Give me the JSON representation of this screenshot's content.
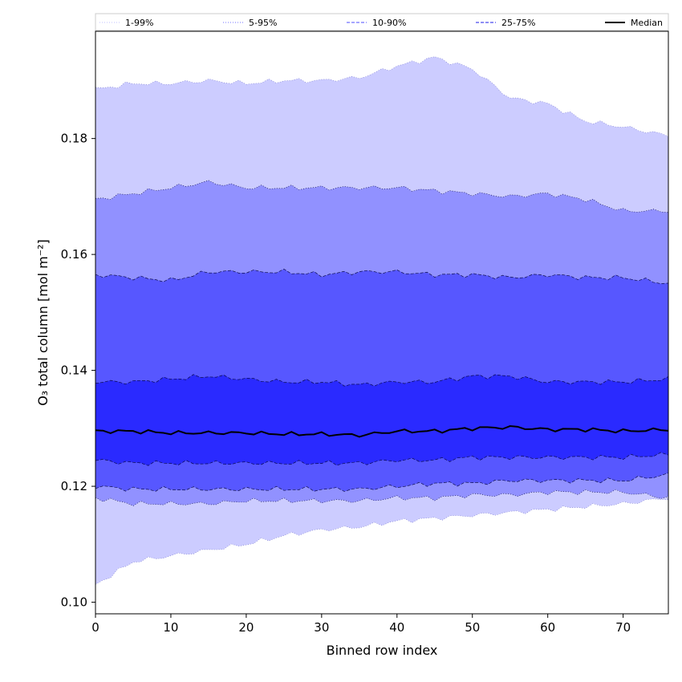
{
  "chart_data": {
    "type": "area",
    "title": "",
    "xlabel": "Binned row index",
    "ylabel": "O₃ total column [mol m⁻²]",
    "xlim": [
      0,
      76
    ],
    "ylim": [
      0.098,
      0.1985
    ],
    "xticks": [
      0,
      10,
      20,
      30,
      40,
      50,
      60,
      70
    ],
    "yticks": [
      0.1,
      0.12,
      0.14,
      0.16,
      0.18
    ],
    "ytick_labels": [
      "0.10",
      "0.12",
      "0.14",
      "0.16",
      "0.18"
    ],
    "grid": false,
    "legend_position": "top",
    "band_colors": [
      "#ccccff",
      "#9191ff",
      "#5757ff",
      "#2a2aff"
    ],
    "median_color": "#000000",
    "x_knots": [
      0,
      5,
      10,
      15,
      20,
      25,
      30,
      35,
      40,
      45,
      50,
      55,
      60,
      65,
      70,
      76
    ],
    "series": [
      {
        "name": "1-99%",
        "lower": [
          0.103,
          0.107,
          0.108,
          0.109,
          0.11,
          0.1115,
          0.1125,
          0.113,
          0.114,
          0.1145,
          0.115,
          0.1155,
          0.116,
          0.1165,
          0.117,
          0.118
        ],
        "upper": [
          0.1885,
          0.1895,
          0.1895,
          0.19,
          0.1895,
          0.19,
          0.19,
          0.1905,
          0.1925,
          0.194,
          0.192,
          0.187,
          0.186,
          0.183,
          0.182,
          0.1805
        ]
      },
      {
        "name": "5-95%",
        "lower": [
          0.118,
          0.117,
          0.117,
          0.117,
          0.1175,
          0.1175,
          0.1175,
          0.1175,
          0.118,
          0.118,
          0.1185,
          0.1185,
          0.119,
          0.119,
          0.119,
          0.118
        ],
        "upper": [
          0.1695,
          0.1705,
          0.1715,
          0.1725,
          0.1715,
          0.1715,
          0.1715,
          0.1715,
          0.1715,
          0.171,
          0.1705,
          0.17,
          0.1705,
          0.1695,
          0.1675,
          0.1675
        ]
      },
      {
        "name": "10-90%",
        "lower": [
          0.12,
          0.1195,
          0.1195,
          0.1195,
          0.1195,
          0.1195,
          0.1195,
          0.1195,
          0.12,
          0.1205,
          0.1205,
          0.121,
          0.121,
          0.121,
          0.121,
          0.122
        ],
        "upper": [
          0.1565,
          0.156,
          0.1555,
          0.157,
          0.157,
          0.157,
          0.1565,
          0.157,
          0.157,
          0.1565,
          0.1565,
          0.156,
          0.1565,
          0.156,
          0.156,
          0.155
        ]
      },
      {
        "name": "25-75%",
        "lower": [
          0.1245,
          0.124,
          0.124,
          0.124,
          0.124,
          0.124,
          0.124,
          0.124,
          0.1245,
          0.1245,
          0.125,
          0.125,
          0.125,
          0.125,
          0.125,
          0.1255
        ],
        "upper": [
          0.138,
          0.138,
          0.1385,
          0.139,
          0.1385,
          0.138,
          0.138,
          0.1375,
          0.138,
          0.138,
          0.139,
          0.139,
          0.138,
          0.138,
          0.138,
          0.1385
        ]
      },
      {
        "name": "Median",
        "values": [
          0.1295,
          0.1295,
          0.1292,
          0.1292,
          0.1292,
          0.129,
          0.129,
          0.1288,
          0.1295,
          0.1295,
          0.13,
          0.1302,
          0.1298,
          0.1298,
          0.1295,
          0.1298
        ]
      }
    ],
    "legend": [
      {
        "label": "1-99%",
        "style": "dotted",
        "color": "#ccccff"
      },
      {
        "label": "5-95%",
        "style": "dotted",
        "color": "#9191ff"
      },
      {
        "label": "10-90%",
        "style": "dashed",
        "color": "#7070ff"
      },
      {
        "label": "25-75%",
        "style": "dashed",
        "color": "#4a4aee"
      },
      {
        "label": "Median",
        "style": "solid",
        "color": "#000000"
      }
    ]
  }
}
